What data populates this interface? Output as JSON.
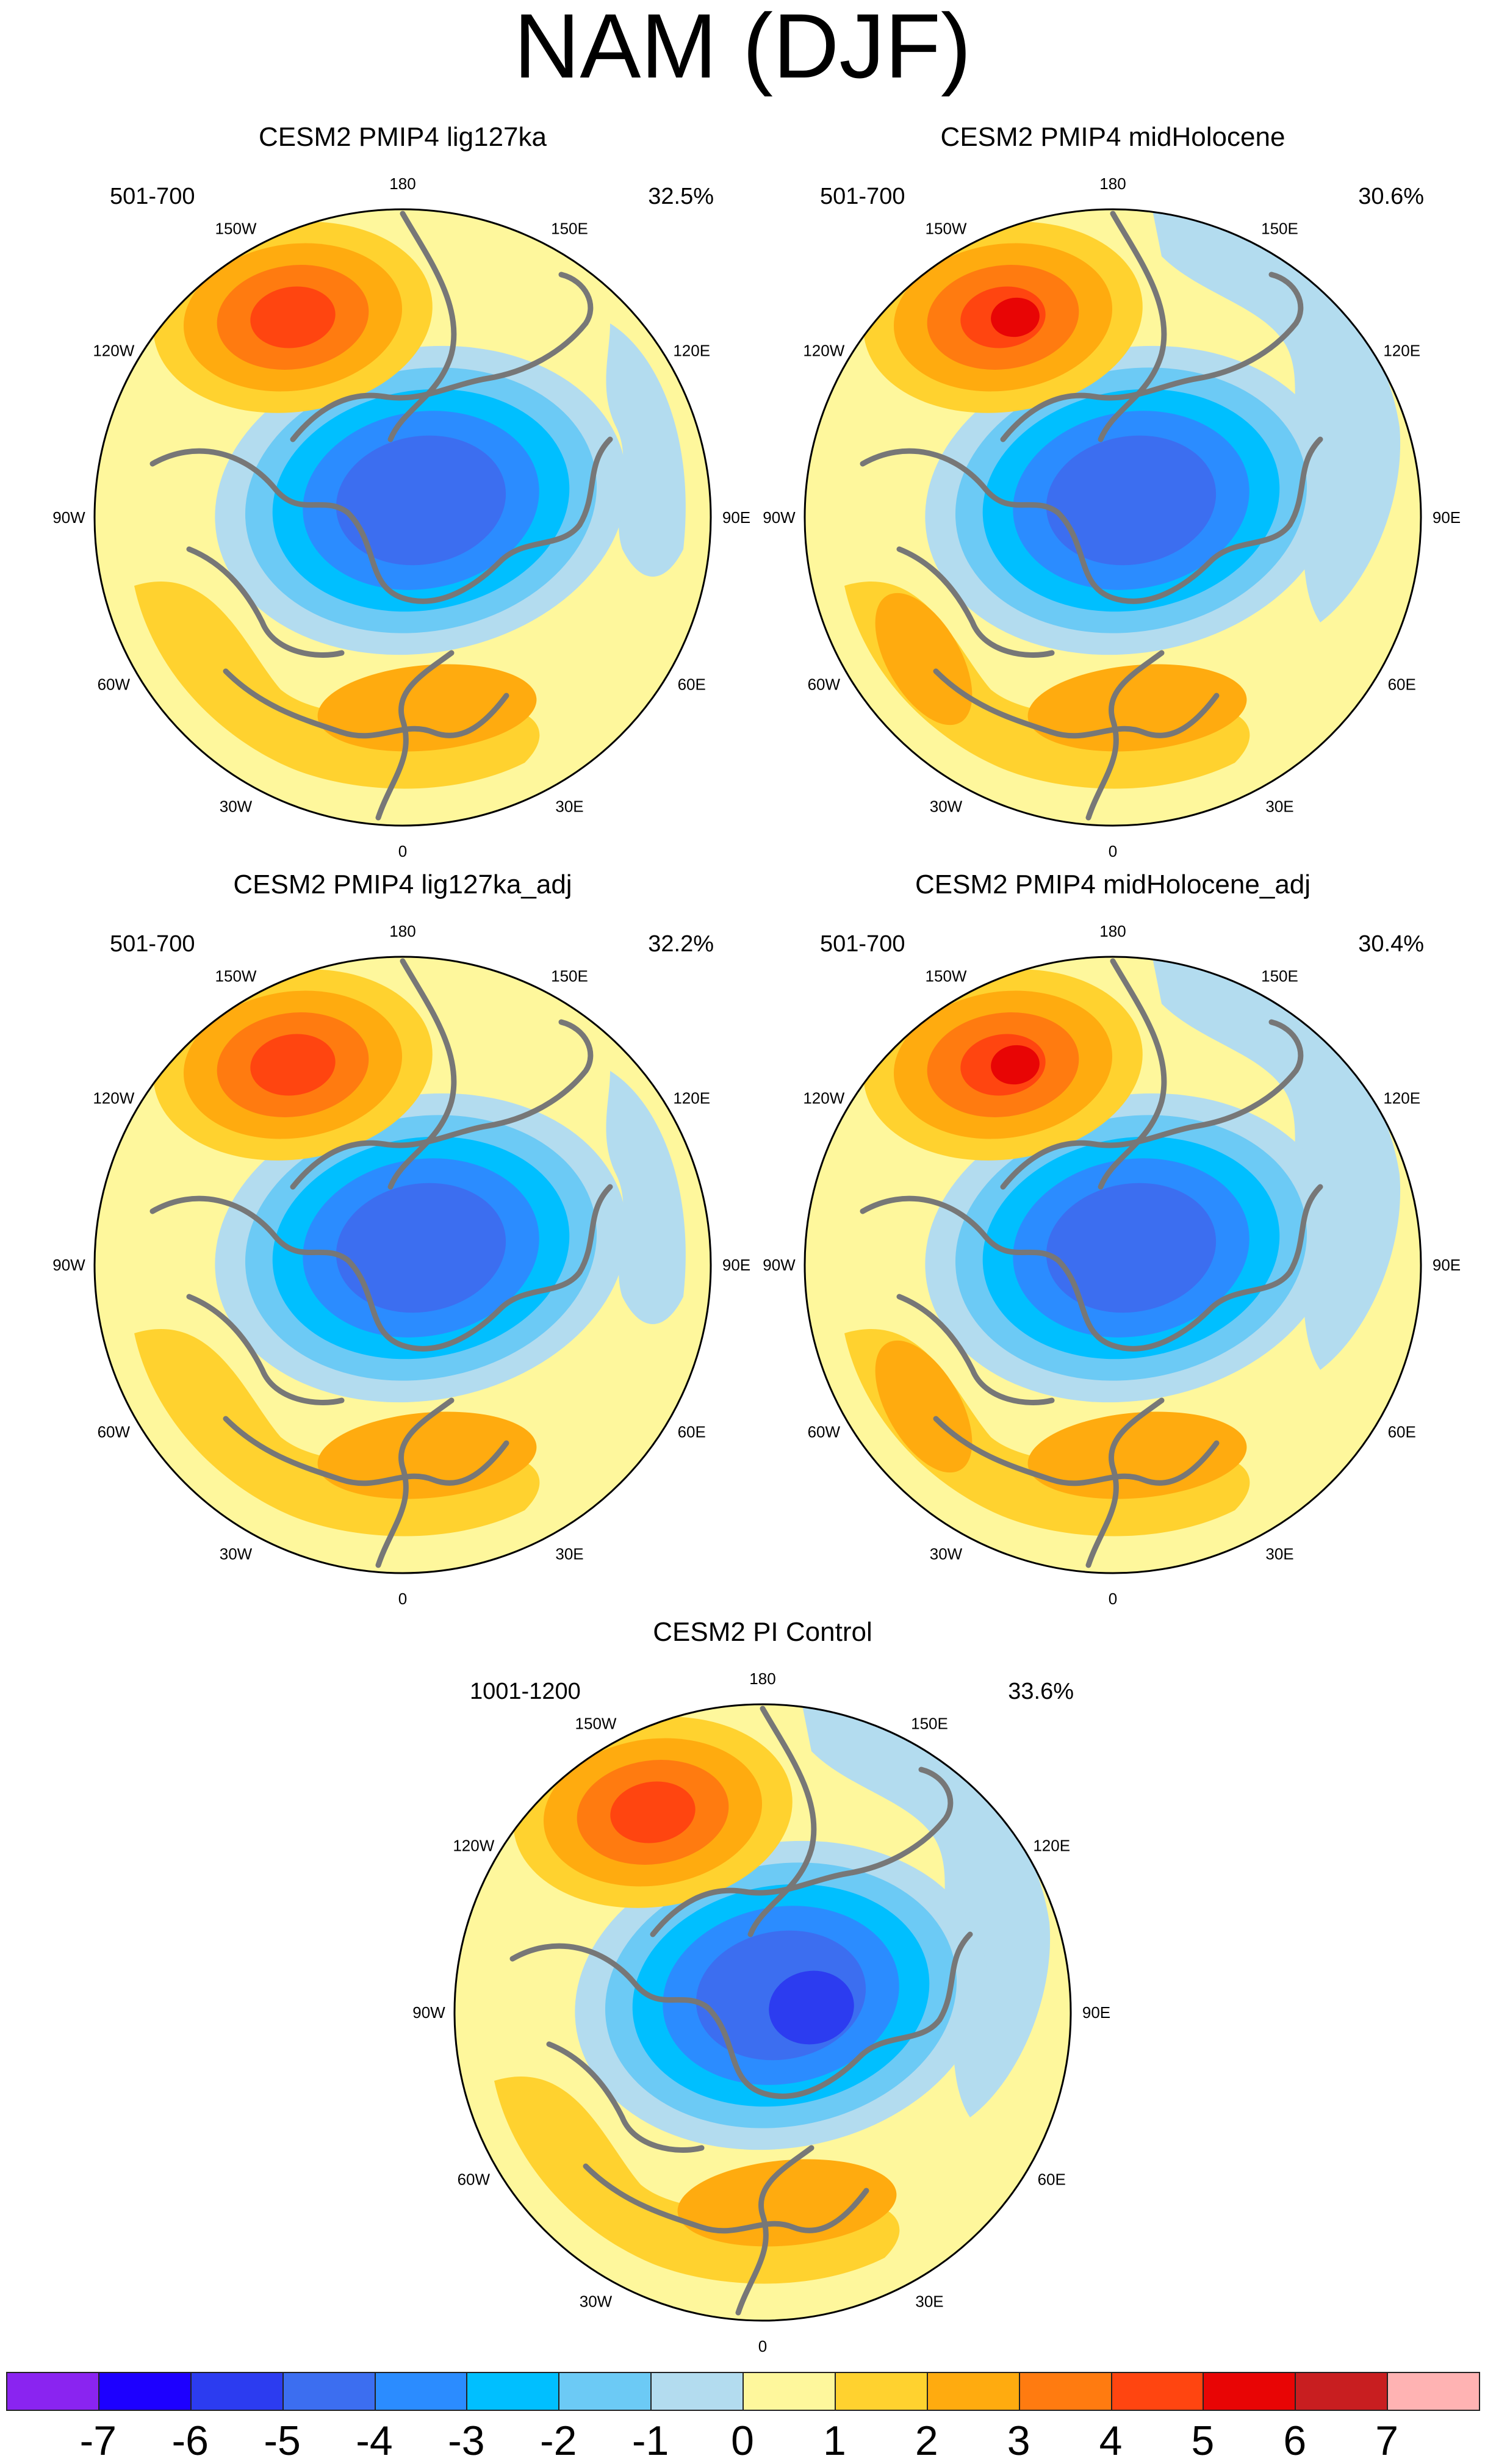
{
  "figure": {
    "title": "NAM (DJF)"
  },
  "panels": [
    {
      "title": "CESM2 PMIP4 lig127ka",
      "period": "501-700",
      "percent": "32.5%"
    },
    {
      "title": "CESM2 PMIP4 midHolocene",
      "period": "501-700",
      "percent": "30.6%"
    },
    {
      "title": "CESM2 PMIP4 lig127ka_adj",
      "period": "501-700",
      "percent": "32.2%"
    },
    {
      "title": "CESM2 PMIP4 midHolocene_adj",
      "period": "501-700",
      "percent": "30.4%"
    },
    {
      "title": "CESM2 PI Control",
      "period": "1001-1200",
      "percent": "33.6%"
    }
  ],
  "longitude_labels": [
    "180",
    "150E",
    "120E",
    "90E",
    "60E",
    "30E",
    "0",
    "30W",
    "60W",
    "90W",
    "120W",
    "150W"
  ],
  "colorbar": {
    "colors": [
      "#8a24f0",
      "#1d00ff",
      "#2c3cf0",
      "#3c6ef0",
      "#2b8cff",
      "#00bfff",
      "#6ccaf5",
      "#b3dcef",
      "#fef79c",
      "#ffd22f",
      "#ffab0f",
      "#ff7b10",
      "#ff4510",
      "#e80505",
      "#c81e20",
      "#ffb3b3"
    ],
    "ticks": [
      "-7",
      "-6",
      "-5",
      "-4",
      "-3",
      "-2",
      "-1",
      "0",
      "1",
      "2",
      "3",
      "4",
      "5",
      "6",
      "7"
    ]
  }
}
